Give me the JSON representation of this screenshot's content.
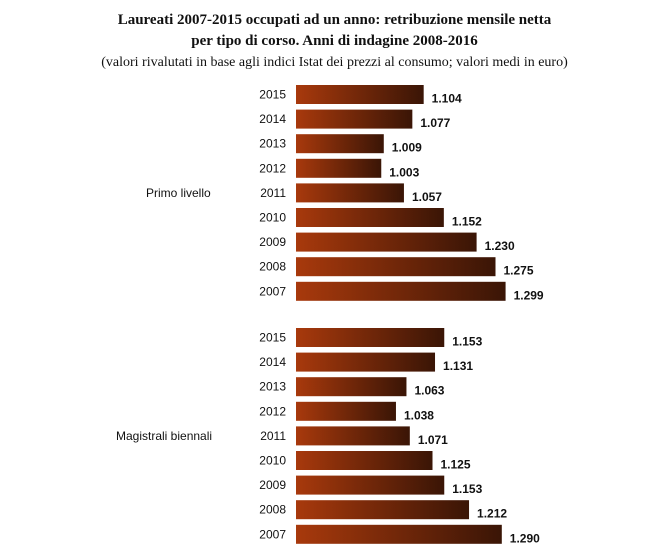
{
  "chart_data": {
    "type": "bar",
    "orientation": "horizontal",
    "title_line1": "Laureati 2007-2015 occupati ad un anno: retribuzione mensile netta",
    "title_line2": "per tipo di corso. Anni di indagine 2008-2016",
    "subtitle": "(valori rivalutati in base agli indici Istat dei prezzi al consumo; valori medi in euro)",
    "groups": [
      {
        "name": "Primo livello",
        "categories": [
          "2015",
          "2014",
          "2013",
          "2012",
          "2011",
          "2010",
          "2009",
          "2008",
          "2007"
        ],
        "values": [
          1104,
          1077,
          1009,
          1003,
          1057,
          1152,
          1230,
          1275,
          1299
        ],
        "labels": [
          "1.104",
          "1.077",
          "1.009",
          "1.003",
          "1.057",
          "1.152",
          "1.230",
          "1.275",
          "1.299"
        ]
      },
      {
        "name": "Magistrali biennali",
        "categories": [
          "2015",
          "2014",
          "2013",
          "2012",
          "2011",
          "2010",
          "2009",
          "2008",
          "2007"
        ],
        "values": [
          1153,
          1131,
          1063,
          1038,
          1071,
          1125,
          1153,
          1212,
          1290
        ],
        "labels": [
          "1.153",
          "1.131",
          "1.063",
          "1.038",
          "1.071",
          "1.125",
          "1.153",
          "1.212",
          "1.290"
        ]
      }
    ],
    "xlim": [
      800,
      1300
    ],
    "grid": false,
    "colors": {
      "bar_start": "#a8390c",
      "bar_end": "#3a1506"
    }
  }
}
